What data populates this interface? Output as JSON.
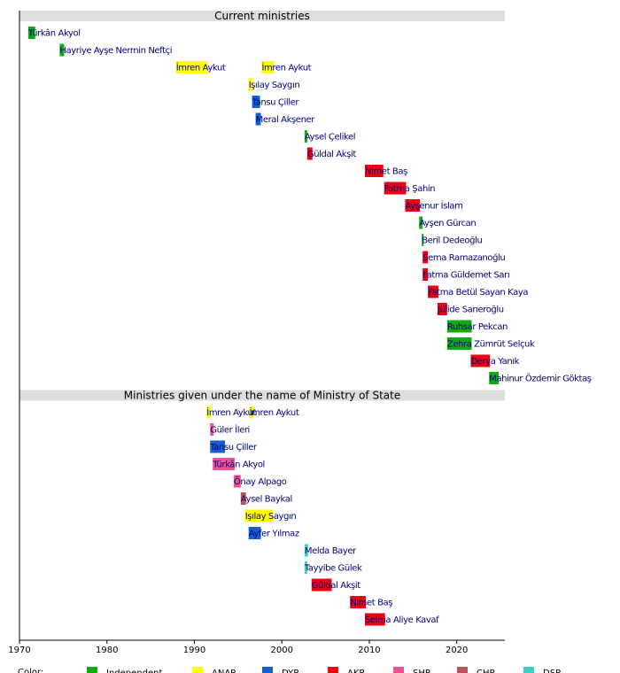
{
  "chart_data": {
    "type": "timeline",
    "xlim": [
      1970,
      2025.5
    ],
    "xticks": [
      1970,
      1980,
      1990,
      2000,
      2010,
      2020
    ],
    "legend_title": "Color:",
    "parties": [
      {
        "name": "Independent",
        "color": "#12aa12"
      },
      {
        "name": "ANAP",
        "color": "#ffff00"
      },
      {
        "name": "DYP",
        "color": "#1060d0"
      },
      {
        "name": "AKP",
        "color": "#ee0011"
      },
      {
        "name": "SHP",
        "color": "#ee5090"
      },
      {
        "name": "CHP",
        "color": "#b8555c"
      },
      {
        "name": "DSP",
        "color": "#3cd0c8"
      }
    ],
    "sections": [
      {
        "title": "Current ministries",
        "rows": [
          {
            "bars": [
              {
                "label": "Türkân Akyol",
                "start": 1971.0,
                "end": 1971.8,
                "party": 0
              }
            ]
          },
          {
            "bars": [
              {
                "label": "Hayriye Ayşe Nermin Neftçi",
                "start": 1974.6,
                "end": 1975.1,
                "party": 0
              }
            ]
          },
          {
            "bars": [
              {
                "label": "İmren Aykut",
                "start": 1987.9,
                "end": 1991.5,
                "party": 1
              },
              {
                "label": "İmren Aykut",
                "start": 1997.7,
                "end": 1999.1,
                "party": 1
              }
            ]
          },
          {
            "bars": [
              {
                "label": "Işılay Saygın",
                "start": 1996.2,
                "end": 1996.7,
                "party": 1
              }
            ]
          },
          {
            "bars": [
              {
                "label": "Tansu Çiller",
                "start": 1996.6,
                "end": 1997.5,
                "party": 2
              }
            ]
          },
          {
            "bars": [
              {
                "label": "Meral Akşener",
                "start": 1997.0,
                "end": 1997.6,
                "party": 2
              }
            ]
          },
          {
            "bars": [
              {
                "label": "Aysel Çelikel",
                "start": 2002.6,
                "end": 2002.9,
                "party": 0
              }
            ]
          },
          {
            "bars": [
              {
                "label": "Güldal Akşit",
                "start": 2002.9,
                "end": 2003.5,
                "party": 3
              }
            ]
          },
          {
            "bars": [
              {
                "label": "Nimet Baş",
                "start": 2009.5,
                "end": 2011.6,
                "party": 3
              }
            ]
          },
          {
            "bars": [
              {
                "label": "Fatma Şahin",
                "start": 2011.7,
                "end": 2014.2,
                "party": 3
              }
            ]
          },
          {
            "bars": [
              {
                "label": "Ayşenur İslam",
                "start": 2014.1,
                "end": 2015.8,
                "party": 3
              }
            ]
          },
          {
            "bars": [
              {
                "label": "Ayşen Gürcan",
                "start": 2015.7,
                "end": 2016.1,
                "party": 0
              }
            ]
          },
          {
            "bars": [
              {
                "label": "Beril Dedeoğlu",
                "start": 2016.0,
                "end": 2016.2,
                "party": 0
              }
            ]
          },
          {
            "bars": [
              {
                "label": "Sema Ramazanoğlu",
                "start": 2016.1,
                "end": 2016.7,
                "party": 3
              }
            ]
          },
          {
            "bars": [
              {
                "label": "Fatma Güldemet Sarı",
                "start": 2016.1,
                "end": 2016.7,
                "party": 3
              }
            ]
          },
          {
            "bars": [
              {
                "label": "Fatma Betül Sayan Kaya",
                "start": 2016.7,
                "end": 2017.9,
                "party": 3
              }
            ]
          },
          {
            "bars": [
              {
                "label": "Jülide Sarıeroğlu",
                "start": 2017.8,
                "end": 2018.9,
                "party": 3
              }
            ]
          },
          {
            "bars": [
              {
                "label": "Ruhsar Pekcan",
                "start": 2018.9,
                "end": 2021.7,
                "party": 0
              }
            ]
          },
          {
            "bars": [
              {
                "label": "Zehra Zümrüt Selçuk",
                "start": 2018.9,
                "end": 2021.7,
                "party": 0
              }
            ]
          },
          {
            "bars": [
              {
                "label": "Derya Yanık",
                "start": 2021.6,
                "end": 2023.8,
                "party": 3
              }
            ]
          },
          {
            "bars": [
              {
                "label": "Mahinur Özdemir Göktaş",
                "start": 2023.7,
                "end": 2024.8,
                "party": 0
              }
            ]
          }
        ]
      },
      {
        "title": "Ministries given under the name of Ministry of State",
        "rows": [
          {
            "bars": [
              {
                "label": "İmren Aykut",
                "start": 1991.4,
                "end": 1991.9,
                "party": 1
              },
              {
                "label": "İmren Aykut",
                "start": 1996.3,
                "end": 1996.8,
                "party": 1
              }
            ]
          },
          {
            "bars": [
              {
                "label": "Güler İleri",
                "start": 1991.8,
                "end": 1992.2,
                "party": 4
              }
            ]
          },
          {
            "bars": [
              {
                "label": "Tansu Çiller",
                "start": 1991.8,
                "end": 1993.5,
                "party": 2
              }
            ]
          },
          {
            "bars": [
              {
                "label": "Türkân Akyol",
                "start": 1992.1,
                "end": 1994.6,
                "party": 4
              }
            ]
          },
          {
            "bars": [
              {
                "label": "Önay Alpago",
                "start": 1994.5,
                "end": 1995.3,
                "party": 4
              }
            ]
          },
          {
            "bars": [
              {
                "label": "Aysel Baykal",
                "start": 1995.3,
                "end": 1995.9,
                "party": 5
              }
            ]
          },
          {
            "bars": [
              {
                "label": "Işılay Saygın",
                "start": 1995.8,
                "end": 1999.0,
                "party": 1
              }
            ]
          },
          {
            "bars": [
              {
                "label": "Ayfer Yılmaz",
                "start": 1996.2,
                "end": 1997.6,
                "party": 2
              }
            ]
          },
          {
            "bars": [
              {
                "label": "Melda Bayer",
                "start": 2002.6,
                "end": 2003.0,
                "party": 6
              }
            ]
          },
          {
            "bars": [
              {
                "label": "Tayyibe Gülek",
                "start": 2002.6,
                "end": 2002.9,
                "party": 6
              }
            ]
          },
          {
            "bars": [
              {
                "label": "Güldal Akşit",
                "start": 2003.4,
                "end": 2005.7,
                "party": 3
              }
            ]
          },
          {
            "bars": [
              {
                "label": "Nimet Baş",
                "start": 2007.8,
                "end": 2009.6,
                "party": 3
              }
            ]
          },
          {
            "bars": [
              {
                "label": "Selma Aliye Kavaf",
                "start": 2009.5,
                "end": 2011.8,
                "party": 3
              }
            ]
          }
        ]
      }
    ]
  }
}
